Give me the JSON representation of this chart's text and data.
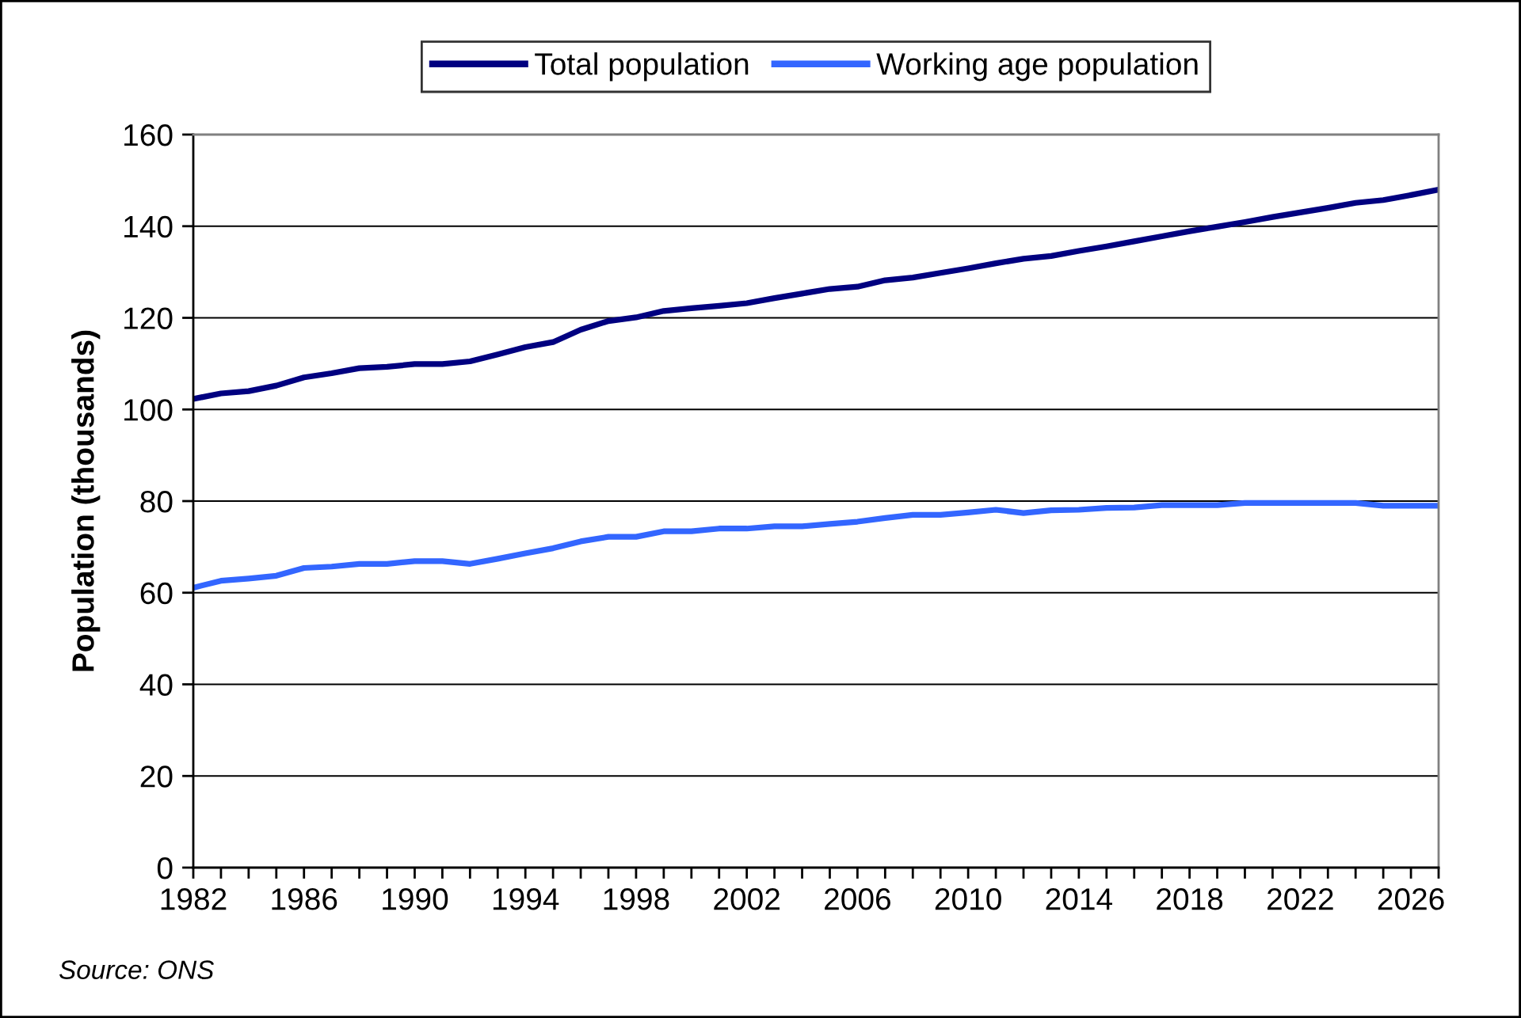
{
  "chart_data": {
    "type": "line",
    "x": [
      1982,
      1983,
      1984,
      1985,
      1986,
      1987,
      1988,
      1989,
      1990,
      1991,
      1992,
      1993,
      1994,
      1995,
      1996,
      1997,
      1998,
      1999,
      2000,
      2001,
      2002,
      2003,
      2004,
      2005,
      2006,
      2007,
      2008,
      2009,
      2010,
      2011,
      2012,
      2013,
      2014,
      2015,
      2016,
      2017,
      2018,
      2019,
      2020,
      2021,
      2022,
      2023,
      2024,
      2025,
      2026,
      2027
    ],
    "series": [
      {
        "name": "Total population",
        "color": "#000080",
        "values": [
          102.3,
          103.5,
          104.0,
          105.2,
          107.0,
          107.9,
          109.0,
          109.3,
          109.9,
          109.9,
          110.5,
          112.0,
          113.6,
          114.7,
          117.4,
          119.3,
          120.1,
          121.5,
          122.1,
          122.6,
          123.2,
          124.3,
          125.3,
          126.3,
          126.8,
          128.2,
          128.8,
          129.8,
          130.8,
          131.9,
          132.9,
          133.5,
          134.6,
          135.6,
          136.7,
          137.8,
          138.9,
          139.9,
          140.9,
          142.0,
          143.0,
          144.0,
          145.1,
          145.7,
          146.8,
          148.0
        ]
      },
      {
        "name": "Working age population",
        "color": "#3366ff",
        "values": [
          61.1,
          62.6,
          63.1,
          63.7,
          65.4,
          65.7,
          66.3,
          66.3,
          66.9,
          66.9,
          66.3,
          67.4,
          68.6,
          69.7,
          71.2,
          72.2,
          72.2,
          73.4,
          73.4,
          74.0,
          74.0,
          74.5,
          74.5,
          75.0,
          75.5,
          76.3,
          77.0,
          77.0,
          77.5,
          78.1,
          77.4,
          78.0,
          78.1,
          78.5,
          78.6,
          79.1,
          79.1,
          79.1,
          79.6,
          79.6,
          79.6,
          79.6,
          79.6,
          79.0,
          79.0,
          79.0
        ]
      }
    ],
    "xlim": [
      1982,
      2027
    ],
    "xticks": [
      1982,
      {
        "value": 1983,
        "label": null
      },
      {
        "value": 1984,
        "label": null
      },
      {
        "value": 1985,
        "label": null
      },
      1986,
      {
        "value": 1987,
        "label": null
      },
      {
        "value": 1988,
        "label": null
      },
      {
        "value": 1989,
        "label": null
      },
      1990,
      {
        "value": 1991,
        "label": null
      },
      {
        "value": 1992,
        "label": null
      },
      {
        "value": 1993,
        "label": null
      },
      1994,
      {
        "value": 1995,
        "label": null
      },
      {
        "value": 1996,
        "label": null
      },
      {
        "value": 1997,
        "label": null
      },
      1998,
      {
        "value": 1999,
        "label": null
      },
      {
        "value": 2000,
        "label": null
      },
      {
        "value": 2001,
        "label": null
      },
      2002,
      {
        "value": 2003,
        "label": null
      },
      {
        "value": 2004,
        "label": null
      },
      {
        "value": 2005,
        "label": null
      },
      2006,
      {
        "value": 2007,
        "label": null
      },
      {
        "value": 2008,
        "label": null
      },
      {
        "value": 2009,
        "label": null
      },
      2010,
      {
        "value": 2011,
        "label": null
      },
      {
        "value": 2012,
        "label": null
      },
      {
        "value": 2013,
        "label": null
      },
      2014,
      {
        "value": 2015,
        "label": null
      },
      {
        "value": 2016,
        "label": null
      },
      {
        "value": 2017,
        "label": null
      },
      2018,
      {
        "value": 2019,
        "label": null
      },
      {
        "value": 2020,
        "label": null
      },
      {
        "value": 2021,
        "label": null
      },
      2022,
      {
        "value": 2023,
        "label": null
      },
      {
        "value": 2024,
        "label": null
      },
      {
        "value": 2025,
        "label": null
      },
      2026,
      {
        "value": 2027,
        "label": null
      }
    ],
    "ylim": [
      0,
      160
    ],
    "yticks": [
      0,
      20,
      40,
      60,
      80,
      100,
      120,
      140,
      160
    ],
    "ylabel": "Population (thousands)",
    "grid": "y",
    "legend": "top",
    "line_style": "solid",
    "annotations": [
      "Source: ONS"
    ]
  }
}
